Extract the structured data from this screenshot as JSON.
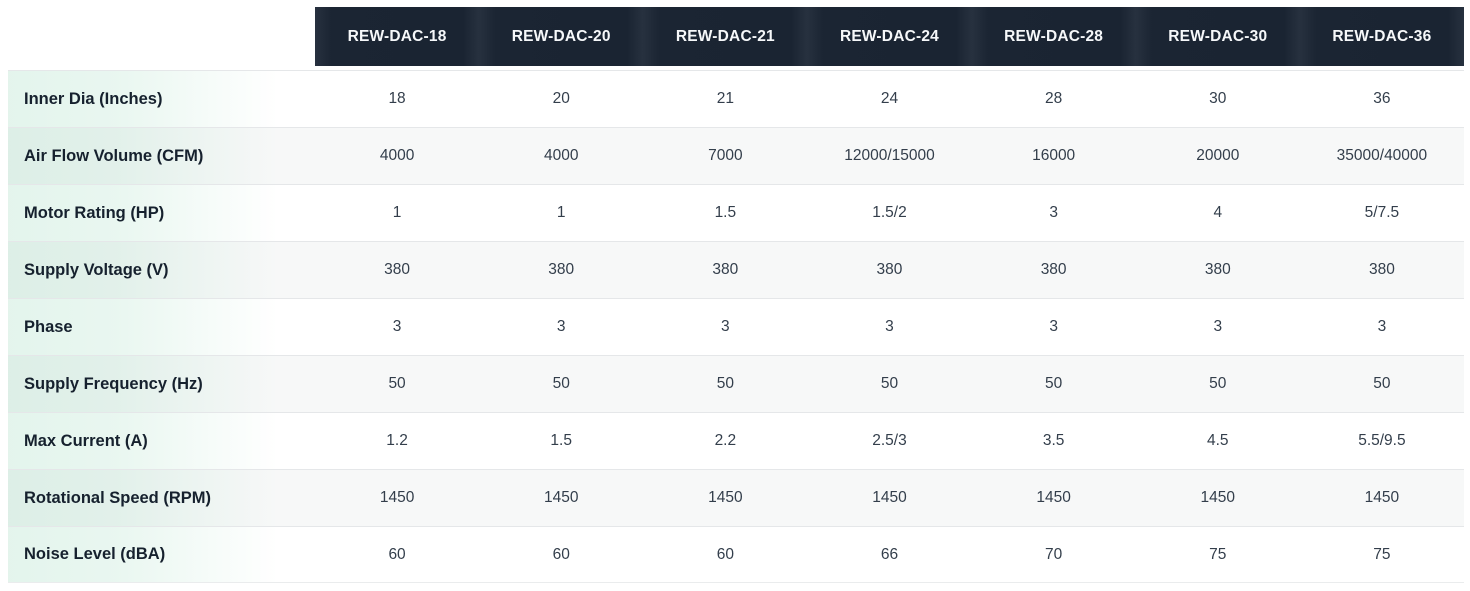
{
  "chart_data": {
    "type": "table",
    "columns": [
      "REW-DAC-18",
      "REW-DAC-20",
      "REW-DAC-21",
      "REW-DAC-24",
      "REW-DAC-28",
      "REW-DAC-30",
      "REW-DAC-36"
    ],
    "rows": [
      {
        "label": "Inner Dia (Inches)",
        "values": [
          "18",
          "20",
          "21",
          "24",
          "28",
          "30",
          "36"
        ]
      },
      {
        "label": "Air Flow Volume (CFM)",
        "values": [
          "4000",
          "4000",
          "7000",
          "12000/15000",
          "16000",
          "20000",
          "35000/40000"
        ]
      },
      {
        "label": "Motor Rating (HP)",
        "values": [
          "1",
          "1",
          "1.5",
          "1.5/2",
          "3",
          "4",
          "5/7.5"
        ]
      },
      {
        "label": "Supply Voltage (V)",
        "values": [
          "380",
          "380",
          "380",
          "380",
          "380",
          "380",
          "380"
        ]
      },
      {
        "label": "Phase",
        "values": [
          "3",
          "3",
          "3",
          "3",
          "3",
          "3",
          "3"
        ]
      },
      {
        "label": "Supply Frequency (Hz)",
        "values": [
          "50",
          "50",
          "50",
          "50",
          "50",
          "50",
          "50"
        ]
      },
      {
        "label": "Max Current (A)",
        "values": [
          "1.2",
          "1.5",
          "2.2",
          "2.5/3",
          "3.5",
          "4.5",
          "5.5/9.5"
        ]
      },
      {
        "label": "Rotational Speed (RPM)",
        "values": [
          "1450",
          "1450",
          "1450",
          "1450",
          "1450",
          "1450",
          "1450"
        ]
      },
      {
        "label": "Noise Level (dBA)",
        "values": [
          "60",
          "60",
          "60",
          "66",
          "70",
          "75",
          "75"
        ]
      }
    ]
  },
  "colors": {
    "header_background": "#1b2533",
    "header_divider": "#27313f",
    "header_text": "#f6f8fa",
    "row_background": "#ffffff",
    "row_alt_background": "#f7f8f8",
    "row_border": "#e5e7e9",
    "label_accent_mint": "#e5f5ee",
    "label_text": "#16212e",
    "value_text": "#333e4b"
  }
}
